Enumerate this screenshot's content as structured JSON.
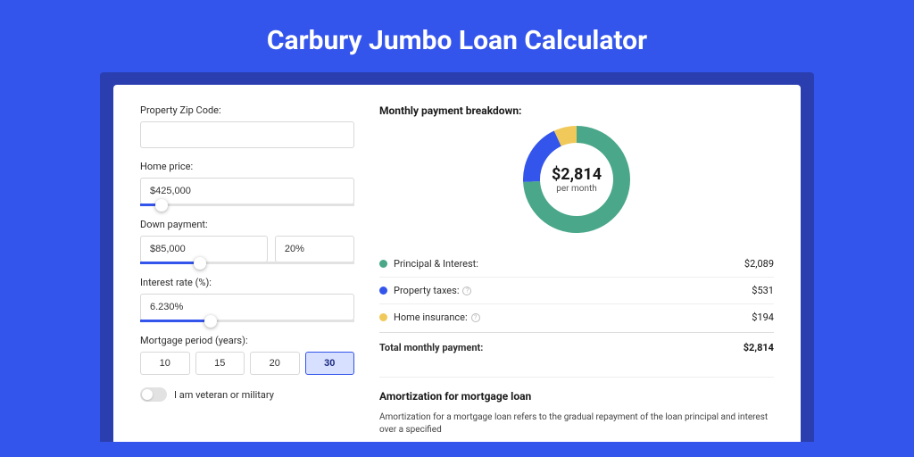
{
  "page": {
    "title": "Carbury Jumbo Loan Calculator",
    "background_color": "#3455eb",
    "shadow_color": "#2a3eb0"
  },
  "form": {
    "zip": {
      "label": "Property Zip Code:",
      "value": ""
    },
    "home_price": {
      "label": "Home price:",
      "value": "$425,000",
      "slider_pct": 10
    },
    "down_payment": {
      "label": "Down payment:",
      "amount": "$85,000",
      "percent": "20%",
      "slider_pct": 28
    },
    "interest_rate": {
      "label": "Interest rate (%):",
      "value": "6.230%",
      "slider_pct": 33
    },
    "mortgage_period": {
      "label": "Mortgage period (years):",
      "options": [
        "10",
        "15",
        "20",
        "30"
      ],
      "selected": "30"
    },
    "veteran": {
      "label": "I am veteran or military",
      "checked": false
    }
  },
  "breakdown": {
    "title": "Monthly payment breakdown:",
    "donut": {
      "amount": "$2,814",
      "sub": "per month",
      "segments": [
        {
          "key": "principal_interest",
          "value": 2089,
          "color": "#4aa789"
        },
        {
          "key": "property_taxes",
          "value": 531,
          "color": "#3455eb"
        },
        {
          "key": "home_insurance",
          "value": 194,
          "color": "#f0c95a"
        }
      ],
      "size": 120,
      "thickness": 19
    },
    "items": [
      {
        "label": "Principal & Interest:",
        "value": "$2,089",
        "color": "#4aa789",
        "info": false
      },
      {
        "label": "Property taxes:",
        "value": "$531",
        "color": "#3455eb",
        "info": true
      },
      {
        "label": "Home insurance:",
        "value": "$194",
        "color": "#f0c95a",
        "info": true
      }
    ],
    "total": {
      "label": "Total monthly payment:",
      "value": "$2,814"
    }
  },
  "amortization": {
    "title": "Amortization for mortgage loan",
    "text": "Amortization for a mortgage loan refers to the gradual repayment of the loan principal and interest over a specified"
  }
}
